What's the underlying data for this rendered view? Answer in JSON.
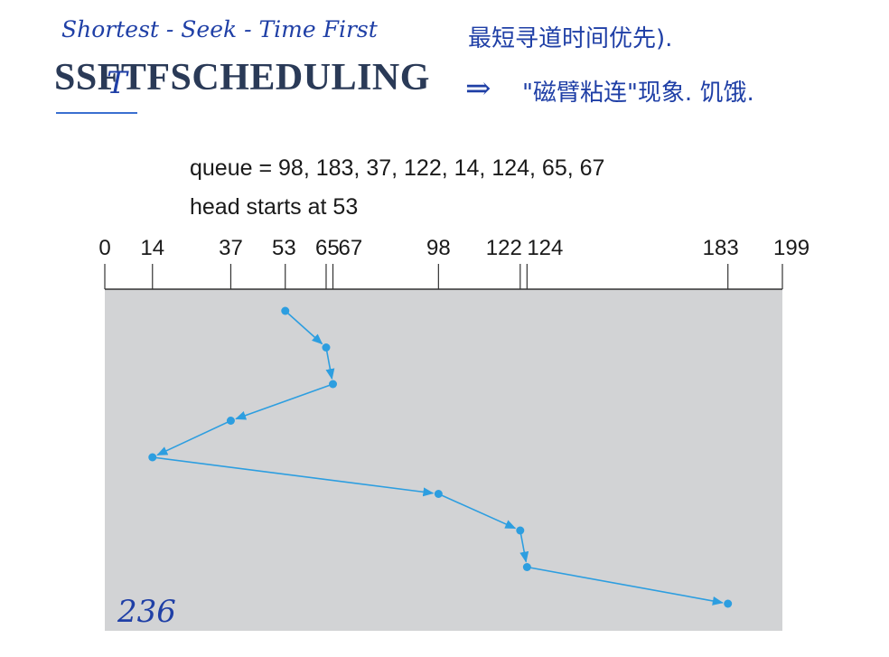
{
  "annotations": {
    "english": "Shortest - Seek - Time   First",
    "chinese": "最短寻道时间优先).",
    "arrow": "⇒",
    "sticky": "\"磁臂粘连\"现象. 饥饿.",
    "total": "236"
  },
  "title": {
    "text": "SSFTFSCHEDULING",
    "correction": "T"
  },
  "queue_label": "queue = 98, 183, 37, 122, 14, 124, 65, 67",
  "head_label": "head starts at 53",
  "chart_data": {
    "type": "line",
    "axis_ticks": [
      0,
      14,
      37,
      53,
      65,
      67,
      98,
      122,
      124,
      183,
      199
    ],
    "axis_range": [
      0,
      199
    ],
    "path": [
      53,
      65,
      67,
      37,
      14,
      98,
      122,
      124,
      183
    ],
    "colors": {
      "line": "#2d9ee0",
      "panel": "#d2d3d5",
      "axis": "#333333"
    }
  }
}
